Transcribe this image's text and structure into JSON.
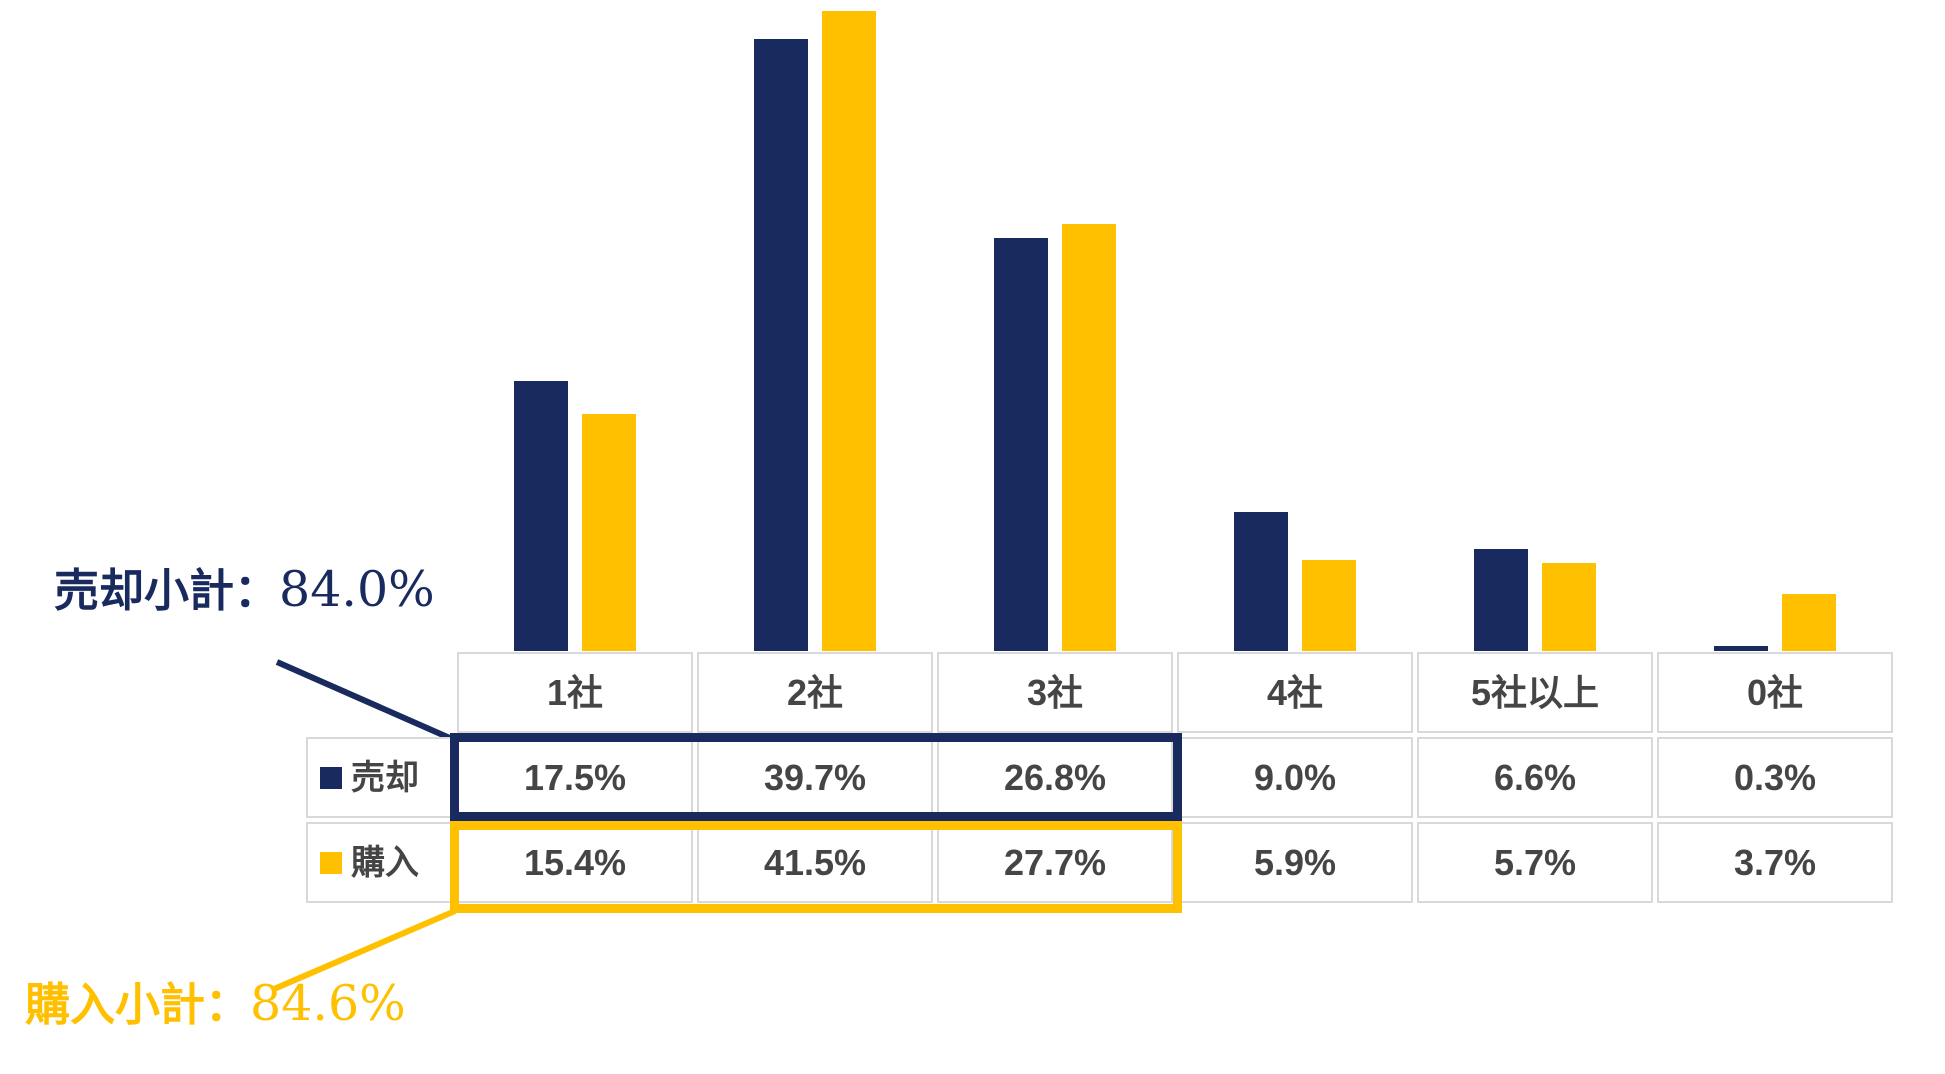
{
  "colors": {
    "navy": "#182A5E",
    "gold": "#FFC000",
    "table_border": "#D9D9D9",
    "table_text": "#454545"
  },
  "annotations": {
    "sell_subtotal": {
      "label": "売却小計：",
      "value": "84.0%"
    },
    "buy_subtotal": {
      "label": "購入小計：",
      "value": "84.6%"
    }
  },
  "chart_data": {
    "type": "bar",
    "title": "",
    "xlabel": "",
    "ylabel": "",
    "categories": [
      "1社",
      "2社",
      "3社",
      "4社",
      "5社以上",
      "0社"
    ],
    "series": [
      {
        "name": "売却",
        "color_key": "navy",
        "values": [
          17.5,
          39.7,
          26.8,
          9.0,
          6.6,
          0.3
        ]
      },
      {
        "name": "購入",
        "color_key": "gold",
        "values": [
          15.4,
          41.5,
          27.7,
          5.9,
          5.7,
          3.7
        ]
      }
    ],
    "value_suffix": "%",
    "ylim": [
      0,
      42
    ],
    "y_axis_visible": false,
    "grid": false,
    "legend_position": "table-row-labels",
    "data_table_shown": true,
    "highlights": [
      {
        "series": "売却",
        "columns": [
          "1社",
          "2社",
          "3社"
        ],
        "subtotal": "84.0%",
        "color_key": "navy"
      },
      {
        "series": "購入",
        "columns": [
          "1社",
          "2社",
          "3社"
        ],
        "subtotal": "84.6%",
        "color_key": "gold"
      }
    ]
  }
}
